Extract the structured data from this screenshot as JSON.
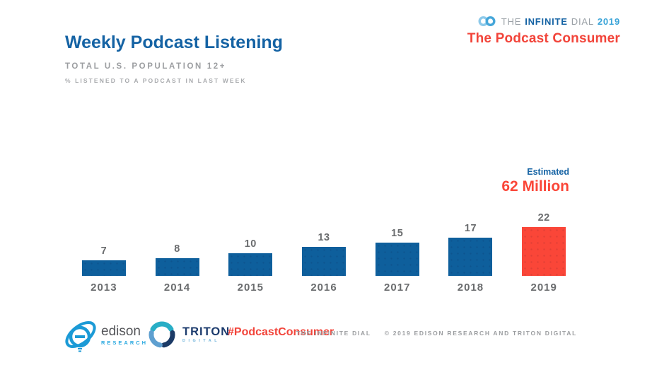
{
  "colors": {
    "title_blue": "#1563a4",
    "bar_blue": "#0e5f9c",
    "highlight_red": "#fa4638",
    "label_gray": "#6a6c6e",
    "muted_gray": "#9c9ea1",
    "logo_light_blue": "#3aa4d8",
    "brand_red": "#f2443a"
  },
  "header": {
    "title": "Weekly Podcast Listening",
    "subtitle": "TOTAL U.S. POPULATION 12+",
    "description": "% LISTENED TO A PODCAST IN LAST WEEK"
  },
  "brand": {
    "word_the": "THE",
    "word_infinite": "INFINITE",
    "word_dial": "DIAL",
    "word_year": "2019",
    "program": "The Podcast Consumer"
  },
  "annotation": {
    "label": "Estimated",
    "value": "62 Million"
  },
  "chart_data": {
    "type": "bar",
    "title": "Weekly Podcast Listening",
    "subtitle": "Total U.S. Population 12+, % listened to a podcast in last week",
    "categories": [
      "2013",
      "2014",
      "2015",
      "2016",
      "2017",
      "2018",
      "2019"
    ],
    "values": [
      7,
      8,
      10,
      13,
      15,
      17,
      22
    ],
    "unit": "percent",
    "bar_colors": [
      "#0e5f9c",
      "#0e5f9c",
      "#0e5f9c",
      "#0e5f9c",
      "#0e5f9c",
      "#0e5f9c",
      "#fa4638"
    ],
    "highlight_index": 6,
    "annotation": "Estimated 62 Million (2019)",
    "data_labels": true,
    "grid": false,
    "legend": false,
    "xlabel": "",
    "ylabel": "",
    "ylim": [
      0,
      25
    ]
  },
  "footer": {
    "edison_name": "edison",
    "edison_sub": "RESEARCH",
    "triton_name": "TRITON",
    "triton_sub": "DIGITAL",
    "hashtag": "#PodcastConsumer",
    "source_left": "THE INFINITE DIAL",
    "source_right": "© 2019 EDISON RESEARCH AND TRITON DIGITAL"
  }
}
